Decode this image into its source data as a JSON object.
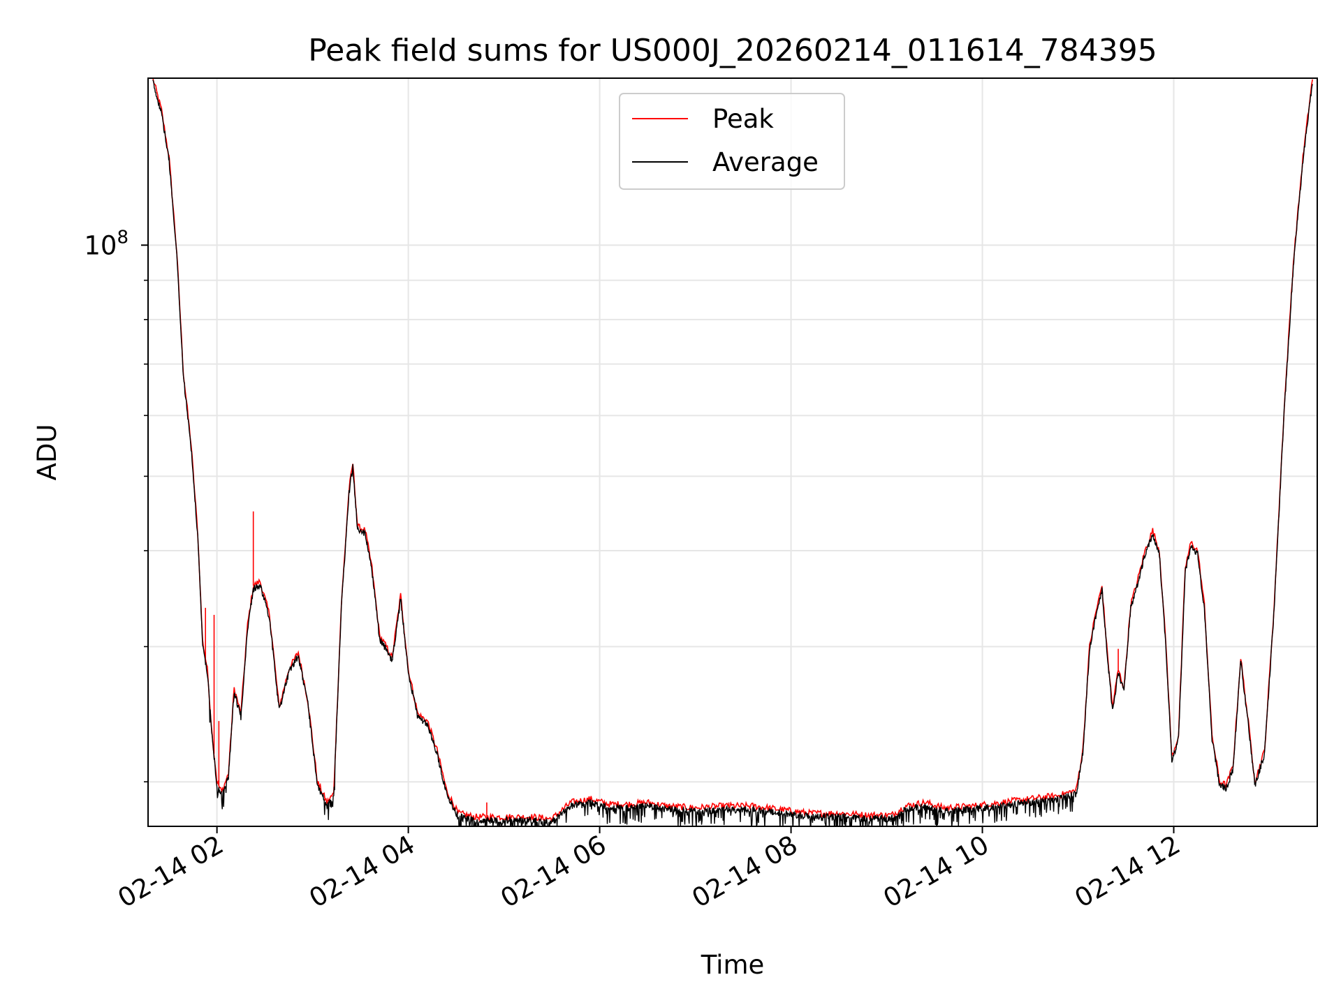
{
  "colors": {
    "peak": "#ff0000",
    "average": "#000000",
    "grid": "#e6e6e6",
    "axis": "#000000",
    "background": "#ffffff"
  },
  "chart_data": {
    "type": "line",
    "title": "Peak field sums for US000J_20260214_011614_784395",
    "xlabel": "Time",
    "ylabel": "ADU",
    "y_scale": "log",
    "xlim_hours": [
      1.28,
      13.5
    ],
    "ylim": [
      17500000,
      165000000
    ],
    "x_ticks": [
      {
        "hour": 2,
        "label": "02-14 02"
      },
      {
        "hour": 4,
        "label": "02-14 04"
      },
      {
        "hour": 6,
        "label": "02-14 06"
      },
      {
        "hour": 8,
        "label": "02-14 08"
      },
      {
        "hour": 10,
        "label": "02-14 10"
      },
      {
        "hour": 12,
        "label": "02-14 12"
      }
    ],
    "y_major_ticks": [
      {
        "value": 100000000,
        "base": "10",
        "exp": "8"
      }
    ],
    "y_minor_ticks": [
      20000000,
      30000000,
      40000000,
      50000000,
      60000000,
      70000000,
      80000000,
      90000000,
      200000000
    ],
    "grid": true,
    "legend_position": "upper center",
    "series": [
      {
        "name": "Peak",
        "color": "#ff0000",
        "spikes": [
          {
            "x": 1.88,
            "y": 33700000
          },
          {
            "x": 1.97,
            "y": 33000000
          },
          {
            "x": 2.02,
            "y": 24000000
          },
          {
            "x": 2.38,
            "y": 45000000
          },
          {
            "x": 4.82,
            "y": 18800000
          },
          {
            "x": 7.35,
            "y": 18800000
          },
          {
            "x": 11.42,
            "y": 29800000
          }
        ],
        "points": [
          [
            1.33,
            165000000
          ],
          [
            1.42,
            150000000
          ],
          [
            1.5,
            130000000
          ],
          [
            1.58,
            98000000
          ],
          [
            1.65,
            68000000
          ],
          [
            1.73,
            55000000
          ],
          [
            1.8,
            42000000
          ],
          [
            1.85,
            30500000
          ],
          [
            1.9,
            28000000
          ],
          [
            1.95,
            23000000
          ],
          [
            2.0,
            20000000
          ],
          [
            2.05,
            19400000
          ],
          [
            2.12,
            20500000
          ],
          [
            2.18,
            26500000
          ],
          [
            2.25,
            24500000
          ],
          [
            2.32,
            32000000
          ],
          [
            2.38,
            36000000
          ],
          [
            2.45,
            36500000
          ],
          [
            2.55,
            33000000
          ],
          [
            2.65,
            25000000
          ],
          [
            2.75,
            28000000
          ],
          [
            2.85,
            29500000
          ],
          [
            2.95,
            25500000
          ],
          [
            3.05,
            20000000
          ],
          [
            3.15,
            18800000
          ],
          [
            3.22,
            19300000
          ],
          [
            3.3,
            34000000
          ],
          [
            3.38,
            48000000
          ],
          [
            3.42,
            52000000
          ],
          [
            3.47,
            43000000
          ],
          [
            3.55,
            42500000
          ],
          [
            3.62,
            38000000
          ],
          [
            3.7,
            31000000
          ],
          [
            3.77,
            30000000
          ],
          [
            3.83,
            29000000
          ],
          [
            3.92,
            35000000
          ],
          [
            4.0,
            28000000
          ],
          [
            4.1,
            24500000
          ],
          [
            4.2,
            24000000
          ],
          [
            4.3,
            22000000
          ],
          [
            4.4,
            19500000
          ],
          [
            4.52,
            18200000
          ],
          [
            4.7,
            18000000
          ],
          [
            5.0,
            18000000
          ],
          [
            5.3,
            18000000
          ],
          [
            5.5,
            17900000
          ],
          [
            5.7,
            18800000
          ],
          [
            5.9,
            19000000
          ],
          [
            6.1,
            18700000
          ],
          [
            6.3,
            18700000
          ],
          [
            6.5,
            18800000
          ],
          [
            6.7,
            18600000
          ],
          [
            7.0,
            18500000
          ],
          [
            7.3,
            18600000
          ],
          [
            7.6,
            18600000
          ],
          [
            7.9,
            18400000
          ],
          [
            8.2,
            18200000
          ],
          [
            8.5,
            18200000
          ],
          [
            8.8,
            18100000
          ],
          [
            9.05,
            18100000
          ],
          [
            9.2,
            18600000
          ],
          [
            9.4,
            18800000
          ],
          [
            9.6,
            18500000
          ],
          [
            9.9,
            18600000
          ],
          [
            10.2,
            18800000
          ],
          [
            10.5,
            19000000
          ],
          [
            10.8,
            19200000
          ],
          [
            10.98,
            19500000
          ],
          [
            11.05,
            22000000
          ],
          [
            11.12,
            30000000
          ],
          [
            11.18,
            33000000
          ],
          [
            11.25,
            36000000
          ],
          [
            11.3,
            30000000
          ],
          [
            11.36,
            25000000
          ],
          [
            11.42,
            28000000
          ],
          [
            11.48,
            26500000
          ],
          [
            11.55,
            34000000
          ],
          [
            11.62,
            36500000
          ],
          [
            11.7,
            40000000
          ],
          [
            11.78,
            42500000
          ],
          [
            11.85,
            40000000
          ],
          [
            11.92,
            30000000
          ],
          [
            11.98,
            21500000
          ],
          [
            12.05,
            23000000
          ],
          [
            12.12,
            38000000
          ],
          [
            12.18,
            41000000
          ],
          [
            12.25,
            40000000
          ],
          [
            12.32,
            34000000
          ],
          [
            12.4,
            23000000
          ],
          [
            12.48,
            20000000
          ],
          [
            12.55,
            19800000
          ],
          [
            12.62,
            21000000
          ],
          [
            12.7,
            29000000
          ],
          [
            12.77,
            24500000
          ],
          [
            12.85,
            20000000
          ],
          [
            12.95,
            22000000
          ],
          [
            13.05,
            34000000
          ],
          [
            13.15,
            60000000
          ],
          [
            13.25,
            95000000
          ],
          [
            13.35,
            130000000
          ],
          [
            13.45,
            165000000
          ]
        ]
      },
      {
        "name": "Average",
        "color": "#000000",
        "points": [
          [
            1.33,
            165000000
          ],
          [
            1.42,
            150000000
          ],
          [
            1.5,
            130000000
          ],
          [
            1.58,
            98000000
          ],
          [
            1.65,
            68000000
          ],
          [
            1.73,
            55000000
          ],
          [
            1.8,
            42000000
          ],
          [
            1.85,
            30500000
          ],
          [
            1.9,
            28000000
          ],
          [
            1.95,
            23000000
          ],
          [
            2.0,
            20000000
          ],
          [
            2.05,
            19400000
          ],
          [
            2.12,
            20500000
          ],
          [
            2.18,
            26500000
          ],
          [
            2.25,
            24500000
          ],
          [
            2.32,
            32000000
          ],
          [
            2.38,
            36000000
          ],
          [
            2.45,
            36500000
          ],
          [
            2.55,
            33000000
          ],
          [
            2.65,
            25000000
          ],
          [
            2.75,
            28000000
          ],
          [
            2.85,
            29500000
          ],
          [
            2.95,
            25500000
          ],
          [
            3.05,
            20000000
          ],
          [
            3.15,
            18800000
          ],
          [
            3.22,
            19300000
          ],
          [
            3.3,
            34000000
          ],
          [
            3.38,
            48000000
          ],
          [
            3.42,
            52000000
          ],
          [
            3.47,
            43000000
          ],
          [
            3.55,
            42500000
          ],
          [
            3.62,
            38000000
          ],
          [
            3.7,
            31000000
          ],
          [
            3.77,
            30000000
          ],
          [
            3.83,
            29000000
          ],
          [
            3.92,
            35000000
          ],
          [
            4.0,
            28000000
          ],
          [
            4.1,
            24500000
          ],
          [
            4.2,
            24000000
          ],
          [
            4.3,
            22000000
          ],
          [
            4.4,
            19500000
          ],
          [
            4.52,
            18200000
          ],
          [
            4.7,
            18000000
          ],
          [
            5.0,
            18000000
          ],
          [
            5.3,
            18000000
          ],
          [
            5.5,
            17900000
          ],
          [
            5.7,
            18800000
          ],
          [
            5.9,
            19000000
          ],
          [
            6.1,
            18700000
          ],
          [
            6.3,
            18700000
          ],
          [
            6.5,
            18800000
          ],
          [
            6.7,
            18600000
          ],
          [
            7.0,
            18500000
          ],
          [
            7.3,
            18600000
          ],
          [
            7.6,
            18600000
          ],
          [
            7.9,
            18400000
          ],
          [
            8.2,
            18200000
          ],
          [
            8.5,
            18200000
          ],
          [
            8.8,
            18100000
          ],
          [
            9.05,
            18100000
          ],
          [
            9.2,
            18600000
          ],
          [
            9.4,
            18800000
          ],
          [
            9.6,
            18500000
          ],
          [
            9.9,
            18600000
          ],
          [
            10.2,
            18800000
          ],
          [
            10.5,
            19000000
          ],
          [
            10.8,
            19200000
          ],
          [
            10.98,
            19500000
          ],
          [
            11.05,
            22000000
          ],
          [
            11.12,
            30000000
          ],
          [
            11.18,
            33000000
          ],
          [
            11.25,
            36000000
          ],
          [
            11.3,
            30000000
          ],
          [
            11.36,
            25000000
          ],
          [
            11.42,
            28000000
          ],
          [
            11.48,
            26500000
          ],
          [
            11.55,
            34000000
          ],
          [
            11.62,
            36500000
          ],
          [
            11.7,
            40000000
          ],
          [
            11.78,
            42500000
          ],
          [
            11.85,
            40000000
          ],
          [
            11.92,
            30000000
          ],
          [
            11.98,
            21500000
          ],
          [
            12.05,
            23000000
          ],
          [
            12.12,
            38000000
          ],
          [
            12.18,
            41000000
          ],
          [
            12.25,
            40000000
          ],
          [
            12.32,
            34000000
          ],
          [
            12.4,
            23000000
          ],
          [
            12.48,
            20000000
          ],
          [
            12.55,
            19800000
          ],
          [
            12.62,
            21000000
          ],
          [
            12.7,
            29000000
          ],
          [
            12.77,
            24500000
          ],
          [
            12.85,
            20000000
          ],
          [
            12.95,
            22000000
          ],
          [
            13.05,
            34000000
          ],
          [
            13.15,
            60000000
          ],
          [
            13.25,
            95000000
          ],
          [
            13.35,
            130000000
          ],
          [
            13.45,
            165000000
          ]
        ]
      }
    ]
  }
}
